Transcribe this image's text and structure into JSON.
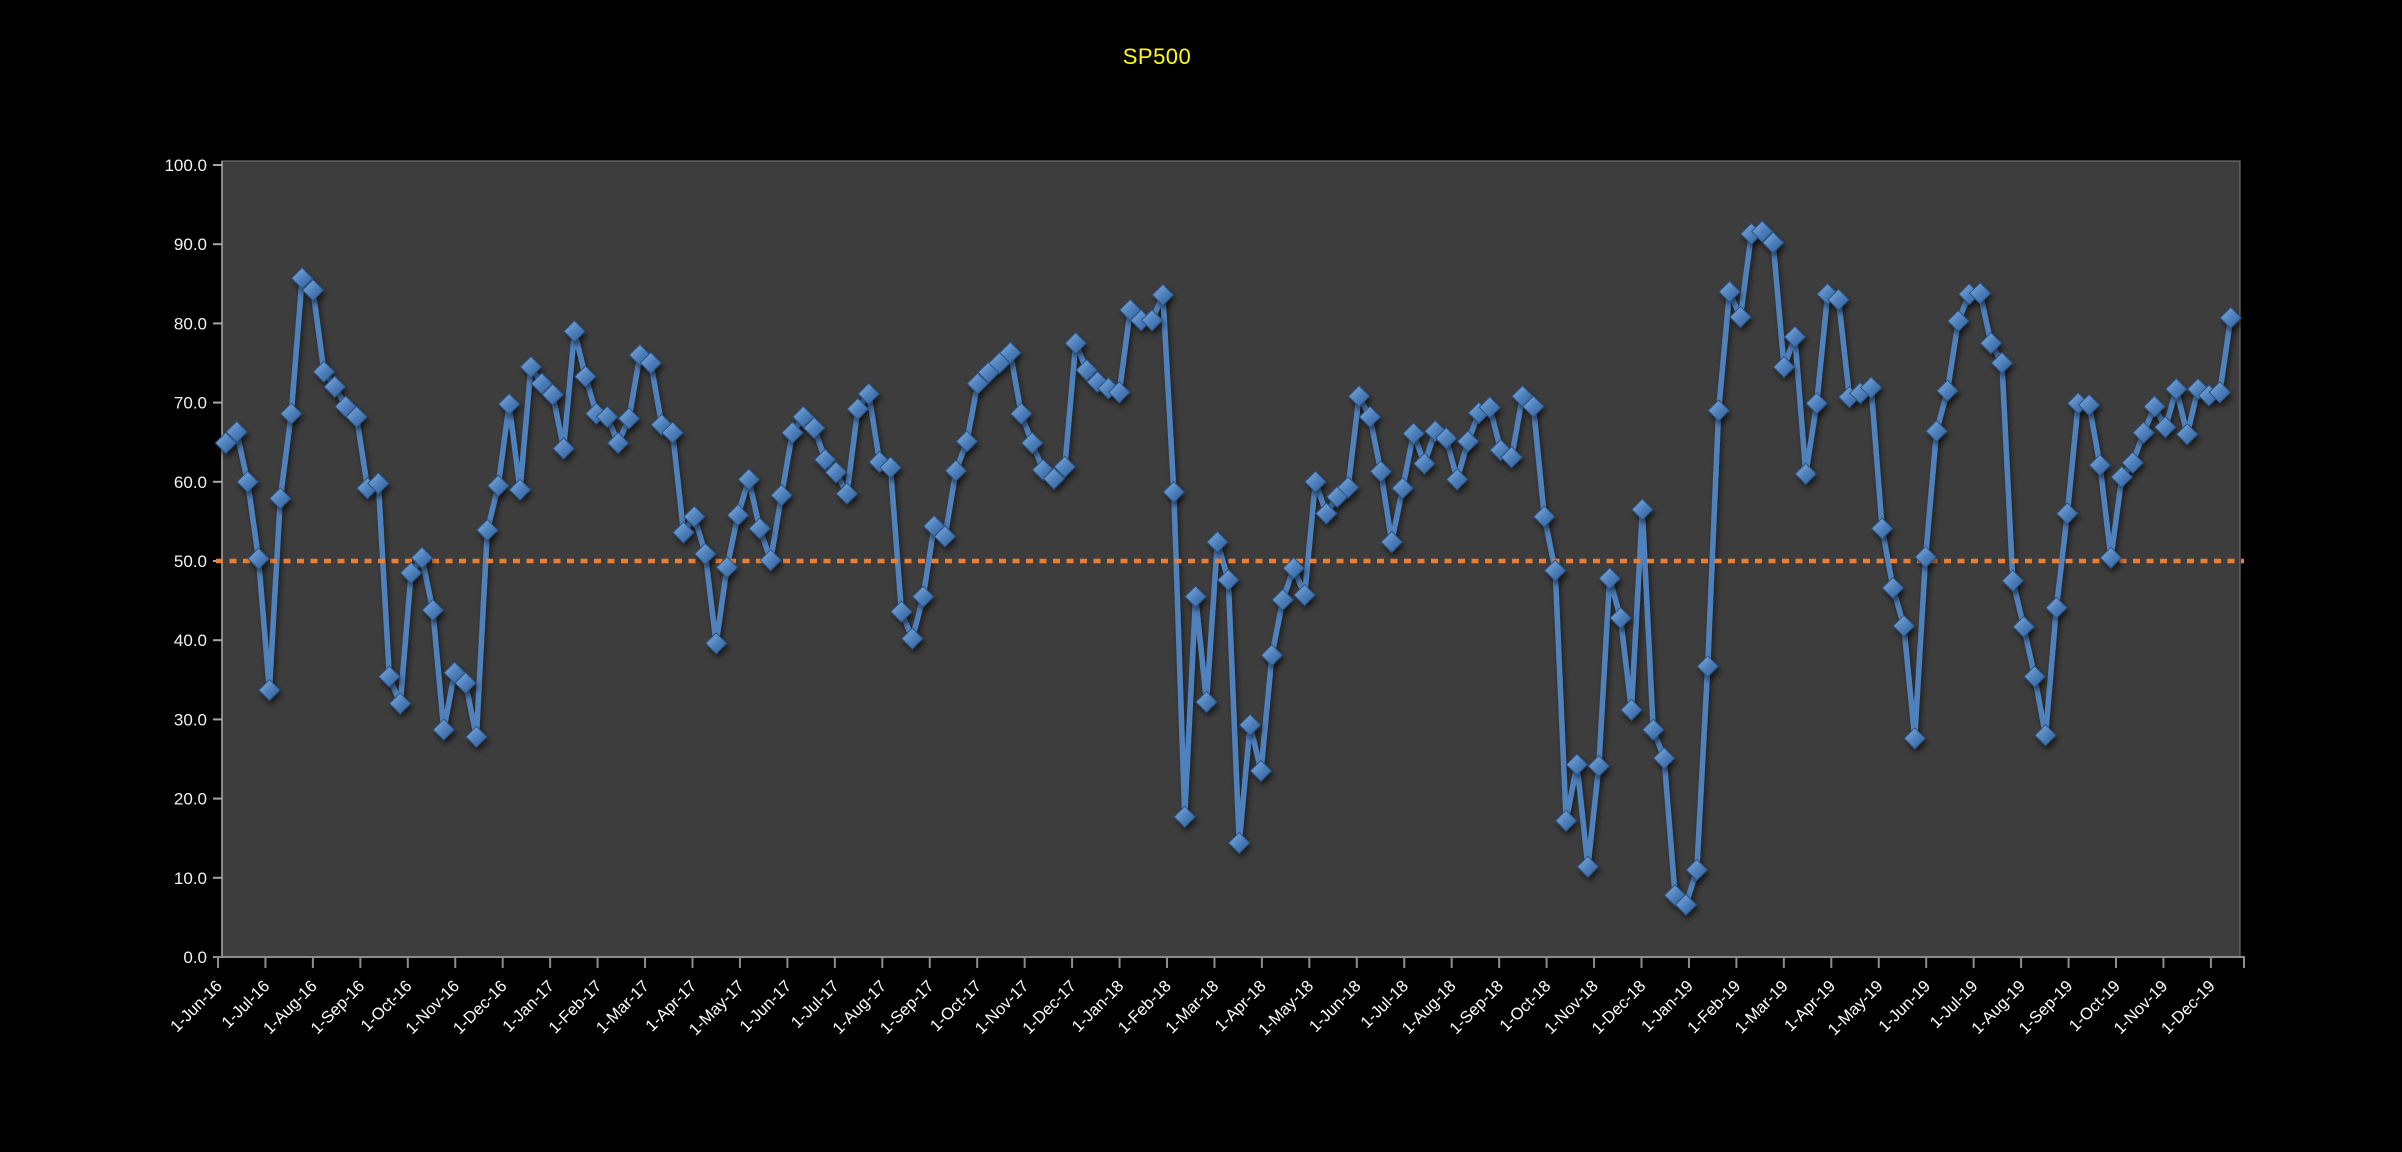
{
  "chart": {
    "title": "SP500",
    "background_color": "#000000",
    "plot_background_color": "#3d3d3d",
    "title_color": "#ffff00",
    "axis_text_color": "#ffffff",
    "axis_line_color": "#8c8c8c",
    "series_color": "#4f81bd",
    "series_color_light": "#8ab4e0",
    "series_color_dark": "#2f5b8f",
    "reference_line_color": "#ed7d31"
  },
  "chart_data": {
    "type": "line",
    "title": "SP500",
    "xlabel": "",
    "ylabel": "",
    "ylim": [
      0,
      100
    ],
    "y_tick_labels": [
      "100.0",
      "90.0",
      "80.0",
      "70.0",
      "60.0",
      "50.0",
      "40.0",
      "30.0",
      "20.0",
      "10.0",
      "0.0"
    ],
    "reference_line": 50.0,
    "grid": false,
    "legend_position": "none",
    "marker_style": "diamond-3d",
    "point_frequency": "weekly",
    "x_tick_labels": [
      "1-Jun-16",
      "1-Jul-16",
      "1-Aug-16",
      "1-Sep-16",
      "1-Oct-16",
      "1-Nov-16",
      "1-Dec-16",
      "1-Jan-17",
      "1-Feb-17",
      "1-Mar-17",
      "1-Apr-17",
      "1-May-17",
      "1-Jun-17",
      "1-Jul-17",
      "1-Aug-17",
      "1-Sep-17",
      "1-Oct-17",
      "1-Nov-17",
      "1-Dec-17",
      "1-Jan-18",
      "1-Feb-18",
      "1-Mar-18",
      "1-Apr-18",
      "1-May-18",
      "1-Jun-18",
      "1-Jul-18",
      "1-Aug-18",
      "1-Sep-18",
      "1-Oct-18",
      "1-Nov-18",
      "1-Dec-18",
      "1-Jan-19",
      "1-Feb-19",
      "1-Mar-19",
      "1-Apr-19",
      "1-May-19",
      "1-Jun-19",
      "1-Jul-19",
      "1-Aug-19",
      "1-Sep-19",
      "1-Oct-19",
      "1-Nov-19",
      "1-Dec-19"
    ],
    "series": [
      {
        "name": "SP500",
        "values": [
          64.9,
          66.3,
          60.0,
          50.3,
          33.7,
          57.9,
          68.6,
          85.7,
          84.2,
          73.9,
          72.0,
          69.5,
          68.2,
          59.2,
          59.8,
          35.4,
          32.0,
          48.5,
          50.4,
          43.8,
          28.7,
          35.9,
          34.6,
          27.8,
          53.9,
          59.5,
          69.8,
          59.0,
          74.5,
          72.4,
          71.0,
          64.2,
          79.0,
          73.3,
          68.6,
          68.2,
          64.9,
          68.0,
          76.0,
          75.0,
          67.2,
          66.2,
          53.6,
          55.6,
          50.9,
          39.6,
          49.2,
          55.8,
          60.3,
          54.1,
          50.1,
          58.3,
          66.2,
          68.2,
          66.8,
          62.8,
          61.2,
          58.5,
          69.2,
          71.1,
          62.5,
          61.8,
          43.6,
          40.2,
          45.5,
          54.4,
          53.1,
          61.4,
          65.1,
          72.4,
          73.8,
          75.0,
          76.3,
          68.6,
          64.9,
          61.5,
          60.4,
          61.9,
          77.5,
          74.1,
          72.6,
          71.8,
          71.3,
          81.7,
          80.4,
          80.4,
          83.6,
          58.7,
          17.7,
          45.5,
          32.2,
          52.4,
          47.6,
          14.4,
          29.3,
          23.5,
          38.1,
          45.1,
          49.1,
          45.7,
          60.0,
          56.0,
          58.1,
          59.3,
          70.8,
          68.2,
          61.3,
          52.4,
          59.2,
          66.1,
          62.3,
          66.4,
          65.5,
          60.3,
          65.1,
          68.7,
          69.4,
          64.0,
          63.1,
          70.8,
          69.5,
          55.6,
          48.8,
          17.2,
          24.3,
          11.4,
          24.1,
          47.8,
          42.8,
          31.2,
          56.5,
          28.7,
          25.1,
          7.8,
          6.6,
          11.0,
          36.7,
          69.0,
          84.0,
          80.8,
          91.3,
          91.6,
          90.2,
          74.5,
          78.3,
          61.0,
          69.9,
          83.7,
          83.0,
          70.7,
          71.2,
          71.9,
          54.1,
          46.6,
          41.8,
          27.6,
          50.5,
          66.4,
          71.5,
          80.3,
          83.7,
          83.8,
          77.5,
          75.0,
          47.5,
          41.7,
          35.4,
          28.0,
          44.1,
          56.0,
          69.9,
          69.7,
          62.1,
          50.4,
          60.6,
          62.4,
          66.2,
          69.5,
          66.9,
          71.7,
          66.0,
          71.7,
          70.9,
          71.3,
          80.7
        ]
      }
    ]
  }
}
